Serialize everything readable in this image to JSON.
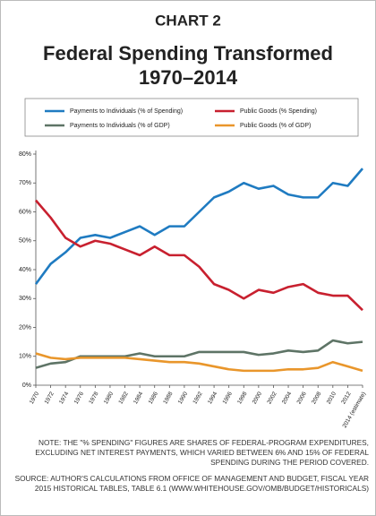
{
  "chart_data": {
    "type": "line",
    "chart_label": "CHART 2",
    "title": "Federal Spending Transformed",
    "subtitle": "1970–2014",
    "x": [
      1970,
      1972,
      1974,
      1976,
      1978,
      1980,
      1982,
      1984,
      1986,
      1988,
      1990,
      1992,
      1994,
      1996,
      1998,
      2000,
      2002,
      2004,
      2006,
      2008,
      2010,
      2012,
      2014
    ],
    "xlim": [
      1970,
      2014
    ],
    "xticks": [
      1970,
      1972,
      1974,
      1976,
      1978,
      1980,
      1982,
      1984,
      1986,
      1988,
      1990,
      1992,
      1994,
      1996,
      1998,
      2000,
      2002,
      2004,
      2006,
      2008,
      2010,
      2012,
      {
        "value": 2014,
        "label": "2014 (estimate)"
      }
    ],
    "ylim": [
      0,
      80
    ],
    "yticks": [
      {
        "value": 0,
        "label": "0%"
      },
      {
        "value": 10,
        "label": "10%"
      },
      {
        "value": 20,
        "label": "20%"
      },
      {
        "value": 30,
        "label": "30%"
      },
      {
        "value": 40,
        "label": "40%"
      },
      {
        "value": 50,
        "label": "50%"
      },
      {
        "value": 60,
        "label": "60%"
      },
      {
        "value": 70,
        "label": "70%"
      },
      {
        "value": 80,
        "label": "80%"
      }
    ],
    "grid": false,
    "series": [
      {
        "name": "Payments to Individuals (% of Spending)",
        "color": "#1f7bc1",
        "values": [
          35,
          42,
          46,
          51,
          52,
          51,
          53,
          55,
          52,
          55,
          55,
          60,
          65,
          67,
          70,
          68,
          69,
          66,
          65,
          65,
          70,
          69,
          75
        ]
      },
      {
        "name": "Public Goods (% Spending)",
        "color": "#c8202f",
        "values": [
          64,
          58,
          51,
          48,
          50,
          49,
          47,
          45,
          48,
          45,
          45,
          41,
          35,
          33,
          30,
          33,
          32,
          34,
          35,
          32,
          31,
          31,
          26
        ]
      },
      {
        "name": "Payments to Individuals (% of GDP)",
        "color": "#5e7466",
        "values": [
          6,
          7.5,
          8,
          10,
          10,
          10,
          10,
          11,
          10,
          10,
          10,
          11.5,
          11.5,
          11.5,
          11.5,
          10.5,
          11,
          12,
          11.5,
          12,
          15.5,
          14.5,
          15
        ]
      },
      {
        "name": "Public Goods (% of GDP)",
        "color": "#e9962b",
        "values": [
          11,
          9.5,
          9,
          9.5,
          9.5,
          9.5,
          9.5,
          9,
          8.5,
          8,
          8,
          7.5,
          6.5,
          5.5,
          5,
          5,
          5,
          5.5,
          5.5,
          6,
          8,
          6.5,
          5
        ]
      }
    ],
    "note": "NOTE: THE \"% SPENDING\" FIGURES ARE SHARES OF FEDERAL-PROGRAM EXPENDITURES, EXCLUDING NET INTEREST PAYMENTS, WHICH VARIED BETWEEN 6% AND 15% OF FEDERAL SPENDING DURING THE PERIOD COVERED.",
    "source": "SOURCE: AUTHOR'S CALCULATIONS FROM OFFICE OF MANAGEMENT AND BUDGET, FISCAL YEAR 2015 HISTORICAL TABLES, TABLE 6.1 (WWW.WHITEHOUSE.GOV/OMB/BUDGET/HISTORICALS)"
  }
}
